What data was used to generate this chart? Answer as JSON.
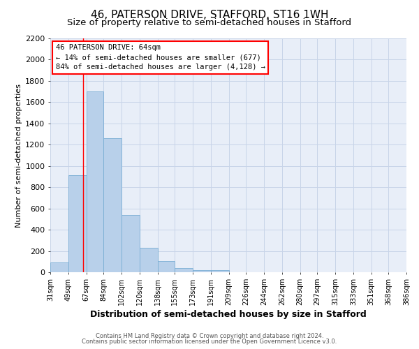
{
  "title": "46, PATERSON DRIVE, STAFFORD, ST16 1WH",
  "subtitle": "Size of property relative to semi-detached houses in Stafford",
  "xlabel": "Distribution of semi-detached houses by size in Stafford",
  "ylabel": "Number of semi-detached properties",
  "bin_edges": [
    31,
    49,
    67,
    84,
    102,
    120,
    138,
    155,
    173,
    191,
    209,
    226,
    244,
    262,
    280,
    297,
    315,
    333,
    351,
    368,
    386
  ],
  "bar_heights": [
    95,
    910,
    1700,
    1260,
    540,
    230,
    105,
    40,
    20,
    20,
    0,
    0,
    0,
    0,
    0,
    0,
    0,
    0,
    0,
    0
  ],
  "bar_color": "#b8d0ea",
  "bar_edge_color": "#7aaed4",
  "red_line_x": 64,
  "ylim": [
    0,
    2200
  ],
  "yticks": [
    0,
    200,
    400,
    600,
    800,
    1000,
    1200,
    1400,
    1600,
    1800,
    2000,
    2200
  ],
  "annotation_line1": "46 PATERSON DRIVE: 64sqm",
  "annotation_line2": "← 14% of semi-detached houses are smaller (677)",
  "annotation_line3": "84% of semi-detached houses are larger (4,128) →",
  "footer_line1": "Contains HM Land Registry data © Crown copyright and database right 2024.",
  "footer_line2": "Contains public sector information licensed under the Open Government Licence v3.0.",
  "background_color": "#ffffff",
  "plot_bg_color": "#e8eef8",
  "grid_color": "#c8d4e8",
  "title_fontsize": 11,
  "subtitle_fontsize": 9.5,
  "tick_labels": [
    "31sqm",
    "49sqm",
    "67sqm",
    "84sqm",
    "102sqm",
    "120sqm",
    "138sqm",
    "155sqm",
    "173sqm",
    "191sqm",
    "209sqm",
    "226sqm",
    "244sqm",
    "262sqm",
    "280sqm",
    "297sqm",
    "315sqm",
    "333sqm",
    "351sqm",
    "368sqm",
    "386sqm"
  ]
}
